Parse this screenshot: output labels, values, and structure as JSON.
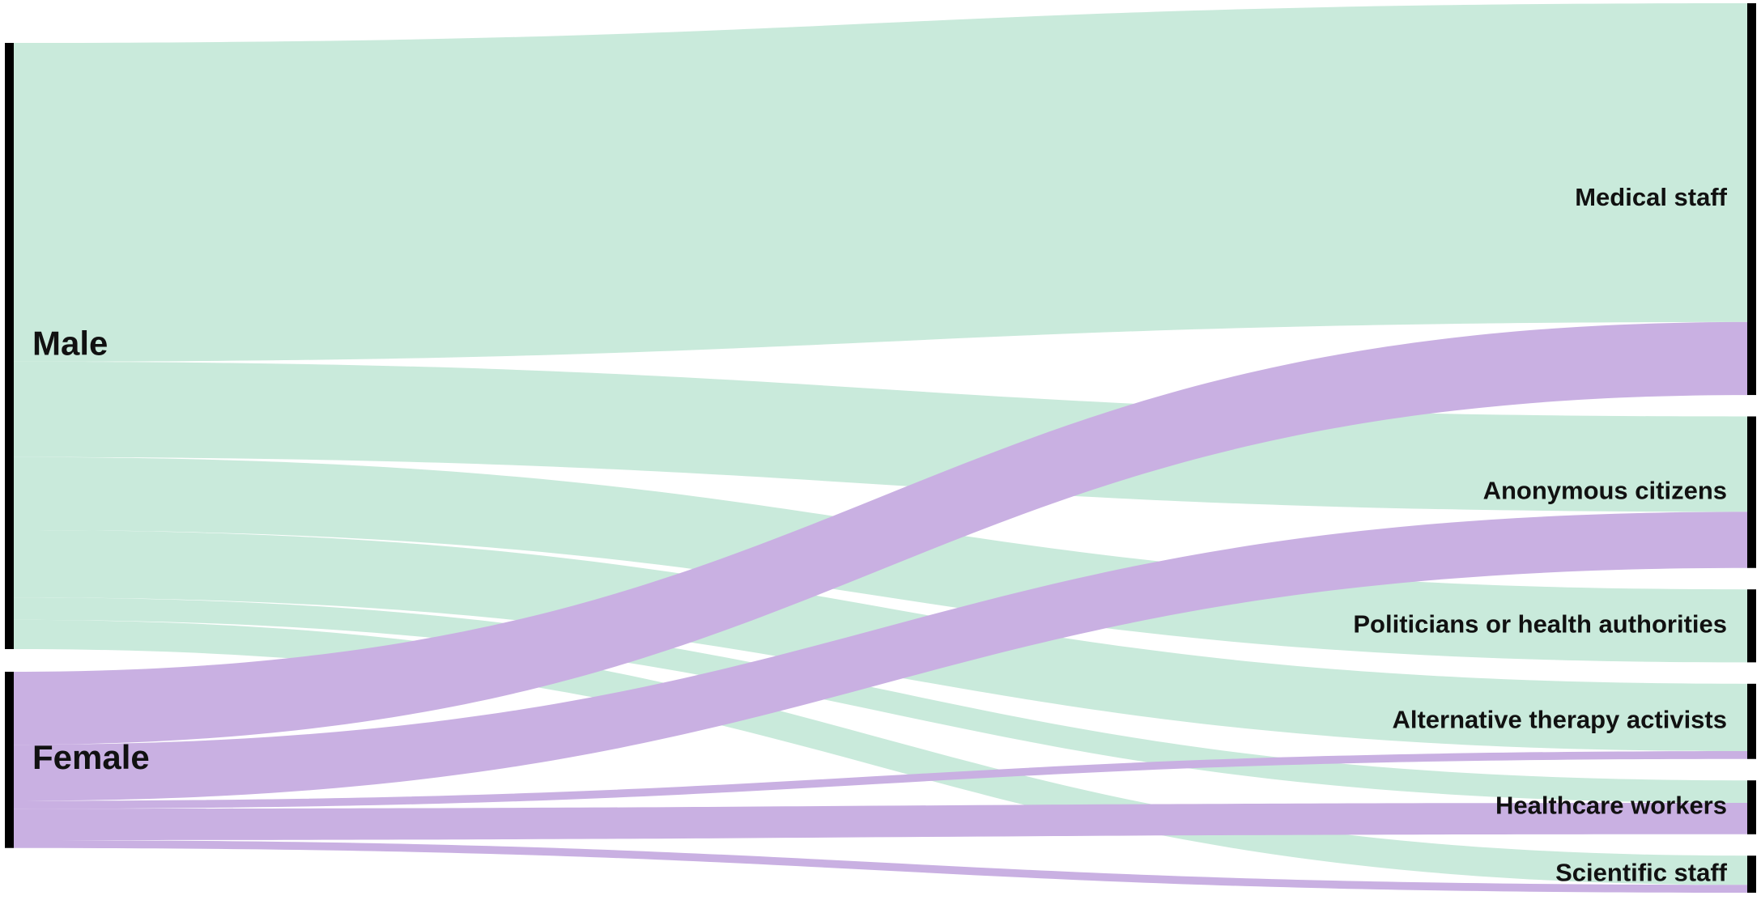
{
  "chart_data": {
    "type": "sankey",
    "nodes": [
      {
        "name": "Male",
        "side": "left"
      },
      {
        "name": "Female",
        "side": "left"
      },
      {
        "name": "Medical staff",
        "side": "right"
      },
      {
        "name": "Anonymous citizens",
        "side": "right"
      },
      {
        "name": "Politicians or health authorities",
        "side": "right"
      },
      {
        "name": "Alternative therapy activists",
        "side": "right"
      },
      {
        "name": "Healthcare workers",
        "side": "right"
      },
      {
        "name": "Scientific staff",
        "side": "right"
      }
    ],
    "links": [
      {
        "source": 0,
        "target": 2,
        "value": 284,
        "color": "#c9eadb"
      },
      {
        "source": 0,
        "target": 3,
        "value": 85,
        "color": "#c9eadb"
      },
      {
        "source": 0,
        "target": 4,
        "value": 65,
        "color": "#c9eadb"
      },
      {
        "source": 0,
        "target": 5,
        "value": 60,
        "color": "#c9eadb"
      },
      {
        "source": 0,
        "target": 6,
        "value": 20,
        "color": "#c9eadb"
      },
      {
        "source": 0,
        "target": 7,
        "value": 26,
        "color": "#c9eadb"
      },
      {
        "source": 1,
        "target": 2,
        "value": 65,
        "color": "#c9b0e2"
      },
      {
        "source": 1,
        "target": 3,
        "value": 50,
        "color": "#c9b0e2"
      },
      {
        "source": 1,
        "target": 5,
        "value": 7,
        "color": "#c9b0e2"
      },
      {
        "source": 1,
        "target": 6,
        "value": 28,
        "color": "#c9b0e2"
      },
      {
        "source": 1,
        "target": 7,
        "value": 7,
        "color": "#c9b0e2"
      }
    ],
    "node_color": "#000000"
  }
}
